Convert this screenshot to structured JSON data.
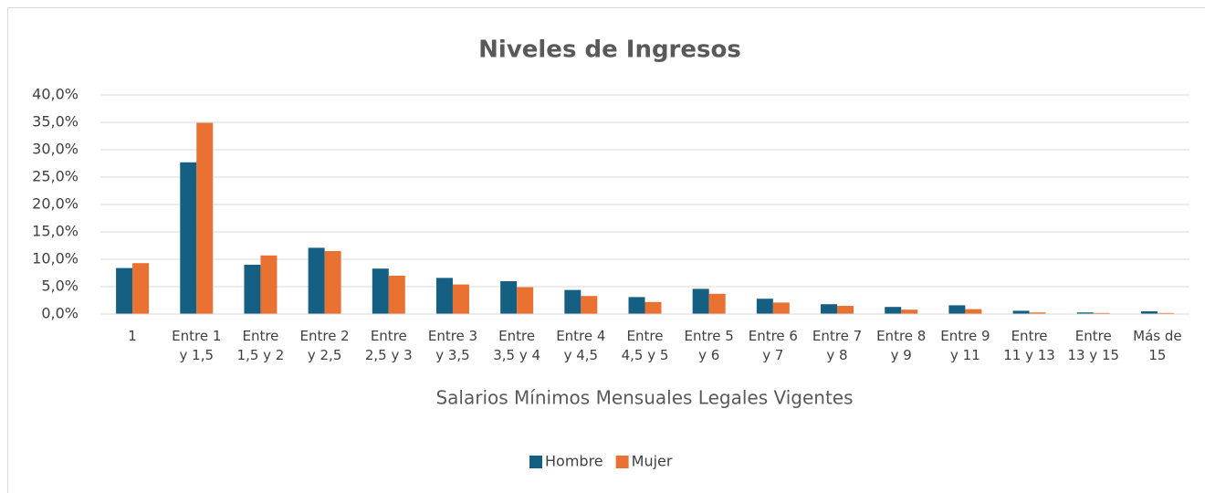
{
  "chart_data": {
    "type": "bar",
    "title": "Niveles de Ingresos",
    "x_label": "Salarios Mínimos Mensuales Legales Vigentes",
    "categories": [
      "1",
      "Entre 1\ny 1,5",
      "Entre\n1,5 y 2",
      "Entre 2\ny 2,5",
      "Entre\n2,5 y 3",
      "Entre 3\ny 3,5",
      "Entre\n3,5 y 4",
      "Entre 4\ny 4,5",
      "Entre\n4,5 y 5",
      "Entre 5\ny 6",
      "Entre 6\ny 7",
      "Entre 7\ny 8",
      "Entre 8\ny 9",
      "Entre 9\ny 11",
      "Entre\n11 y 13",
      "Entre\n13 y 15",
      "Más de\n15"
    ],
    "series": [
      {
        "name": "Hombre",
        "color": "#156082",
        "values": [
          8.4,
          27.7,
          9.0,
          12.1,
          8.3,
          6.6,
          6.0,
          4.4,
          3.1,
          4.6,
          2.8,
          1.8,
          1.3,
          1.6,
          0.6,
          0.3,
          0.5
        ]
      },
      {
        "name": "Mujer",
        "color": "#e97132",
        "values": [
          9.3,
          34.9,
          10.7,
          11.5,
          7.0,
          5.4,
          4.9,
          3.3,
          2.2,
          3.7,
          2.1,
          1.5,
          0.8,
          0.9,
          0.3,
          0.2,
          0.2
        ]
      }
    ],
    "ylim": [
      0,
      40
    ],
    "yticks": [
      {
        "value": 0,
        "label": "0,0%"
      },
      {
        "value": 5,
        "label": "5,0%"
      },
      {
        "value": 10,
        "label": "10,0%"
      },
      {
        "value": 15,
        "label": "15,0%"
      },
      {
        "value": 20,
        "label": "20,0%"
      },
      {
        "value": 25,
        "label": "25,0%"
      },
      {
        "value": 30,
        "label": "30,0%"
      },
      {
        "value": 35,
        "label": "35,0%"
      },
      {
        "value": 40,
        "label": "40,0%"
      }
    ],
    "grid": true,
    "legend": "bottom"
  }
}
